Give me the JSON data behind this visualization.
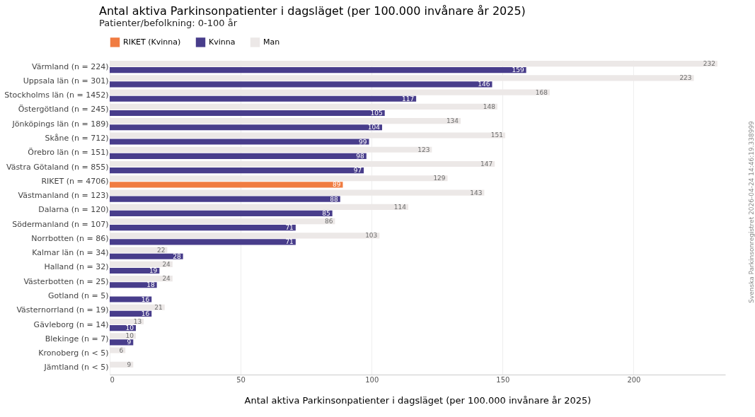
{
  "chart_data": {
    "type": "bar",
    "orientation": "horizontal",
    "title": "Antal aktiva Parkinsonpatienter i dagsläget (per 100.000 invånare år 2025)",
    "subtitle": "Patienter/befolkning: 0-100 år",
    "xlabel": "Antal aktiva Parkinsonpatienter i dagsläget (per 100.000 invånare år 2025)",
    "categories": [
      "Värmland (n = 224)",
      "Uppsala län (n = 301)",
      "Stockholms län (n = 1452)",
      "Östergötland (n = 245)",
      "Jönköpings län (n = 189)",
      "Skåne (n = 712)",
      "Örebro län (n = 151)",
      "Västra Götaland (n = 855)",
      "RIKET (n = 4706)",
      "Västmanland (n = 123)",
      "Dalarna (n = 120)",
      "Södermanland (n = 107)",
      "Norrbotten (n = 86)",
      "Kalmar län (n = 34)",
      "Halland (n = 32)",
      "Västerbotten (n = 25)",
      "Gotland (n = 5)",
      "Västernorrland (n = 19)",
      "Gävleborg (n = 14)",
      "Blekinge (n = 7)",
      "Kronoberg (n < 5)",
      "Jämtland (n < 5)"
    ],
    "series": [
      {
        "name": "RIKET (Kvinna)",
        "color": "#f07c42",
        "values": [
          null,
          null,
          null,
          null,
          null,
          null,
          null,
          null,
          89,
          null,
          null,
          null,
          null,
          null,
          null,
          null,
          null,
          null,
          null,
          null,
          null,
          null
        ]
      },
      {
        "name": "Kvinna",
        "color": "#483d8b",
        "values": [
          159,
          146,
          117,
          105,
          104,
          99,
          98,
          97,
          null,
          88,
          85,
          71,
          71,
          28,
          19,
          18,
          16,
          16,
          10,
          9,
          null,
          null
        ]
      },
      {
        "name": "Man",
        "color": "#ece8e7",
        "values": [
          232,
          223,
          168,
          148,
          134,
          151,
          123,
          147,
          129,
          143,
          114,
          86,
          103,
          22,
          24,
          24,
          null,
          21,
          13,
          10,
          6,
          9
        ]
      }
    ],
    "xlim": [
      0,
      235
    ],
    "xticks": [
      0,
      50,
      100,
      150,
      200
    ],
    "grid": "x",
    "legend": "top",
    "data_labels": true,
    "annotations": [
      "Svenska Parkinsonregistret 2026-04-24 14:46:19.338999"
    ]
  }
}
